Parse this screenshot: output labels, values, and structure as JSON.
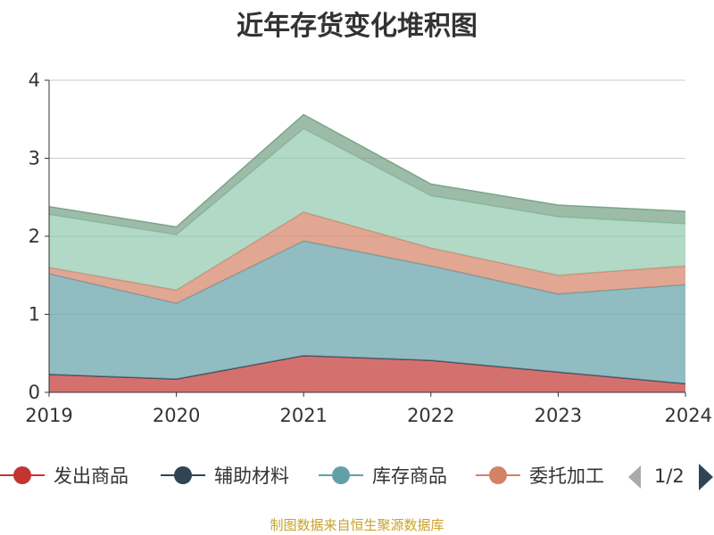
{
  "chart_data": {
    "type": "area",
    "stacked": true,
    "title": "近年存货变化堆积图",
    "x": [
      "2019",
      "2020",
      "2021",
      "2022",
      "2023",
      "2024"
    ],
    "ylim": [
      0,
      4
    ],
    "yticks": [
      "0",
      "1",
      "2",
      "3",
      "4"
    ],
    "grid": true,
    "legend_position": "bottom",
    "legend_page": "1/2",
    "series": [
      {
        "name": "发出商品",
        "color": "#c23531",
        "values": [
          0.23,
          0.17,
          0.47,
          0.41,
          0.26,
          0.11
        ]
      },
      {
        "name": "辅助材料",
        "color": "#2f4554",
        "values": [
          0.0,
          0.0,
          0.0,
          0.0,
          0.0,
          0.0
        ]
      },
      {
        "name": "库存商品",
        "color": "#61a0a8",
        "values": [
          1.29,
          0.97,
          1.47,
          1.21,
          1.0,
          1.27
        ]
      },
      {
        "name": "委托加工",
        "color": "#d48265",
        "values": [
          0.08,
          0.17,
          0.37,
          0.23,
          0.24,
          0.24
        ]
      },
      {
        "name": "",
        "color": "#91c7ae",
        "values": [
          0.68,
          0.71,
          1.07,
          0.67,
          0.75,
          0.54
        ]
      },
      {
        "name": "",
        "color": "#749f83",
        "values": [
          0.1,
          0.1,
          0.18,
          0.15,
          0.15,
          0.16
        ]
      }
    ]
  },
  "source": "制图数据来自恒生聚源数据库"
}
